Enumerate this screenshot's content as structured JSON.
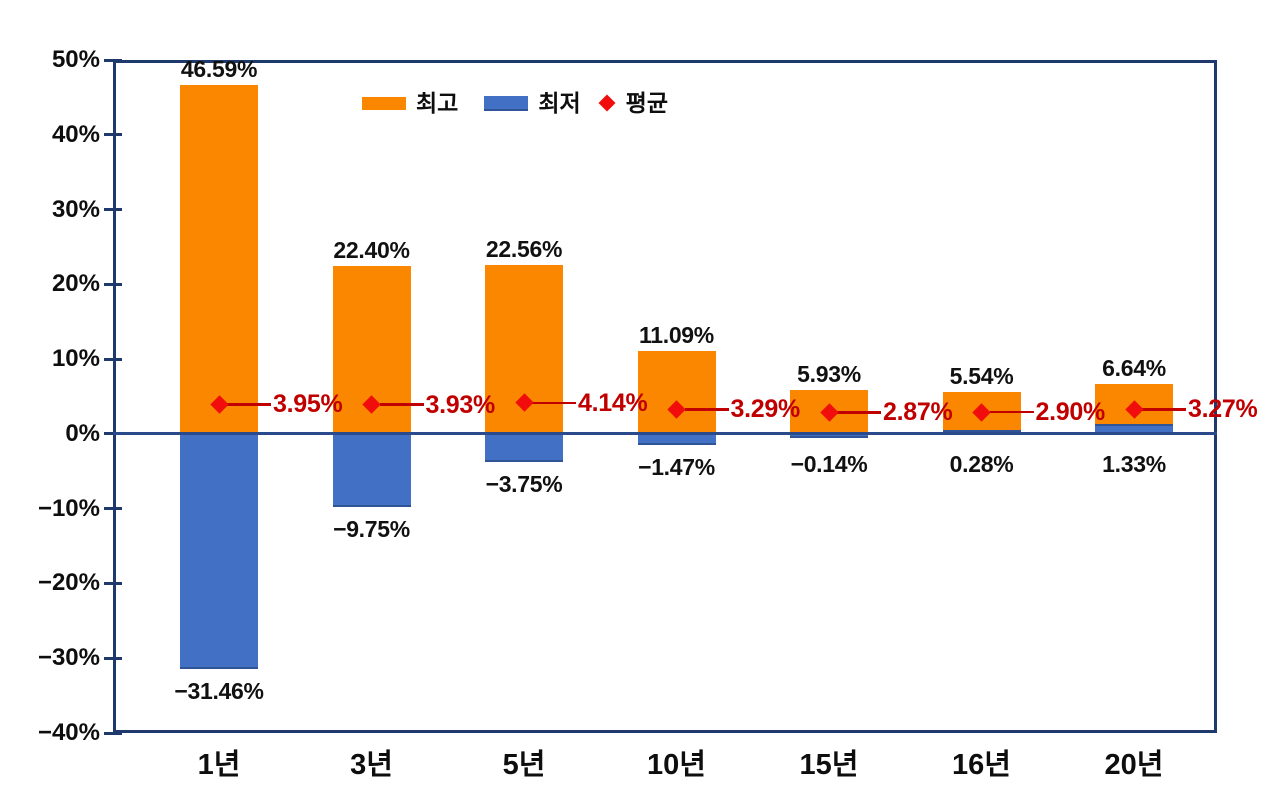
{
  "chart_data": {
    "type": "bar",
    "title": "",
    "xlabel": "",
    "ylabel": "",
    "categories": [
      "1년",
      "3년",
      "5년",
      "10년",
      "15년",
      "16년",
      "20년"
    ],
    "series": [
      {
        "name": "최고",
        "type": "bar",
        "color": "#FB8700",
        "values": [
          46.59,
          22.4,
          22.56,
          11.09,
          5.93,
          5.54,
          6.64
        ],
        "labels": [
          "46.59%",
          "22.40%",
          "22.56%",
          "11.09%",
          "5.93%",
          "5.54%",
          "6.64%"
        ]
      },
      {
        "name": "최저",
        "type": "bar",
        "color": "#4170C4",
        "edge_color": "#2F5597",
        "values": [
          -31.46,
          -9.75,
          -3.75,
          -1.47,
          -0.14,
          0.28,
          1.33
        ],
        "labels": [
          "−31.46%",
          "−9.75%",
          "−3.75%",
          "−1.47%",
          "−0.14%",
          "0.28%",
          "1.33%"
        ]
      },
      {
        "name": "평균",
        "type": "scatter-diamond",
        "color": "#F20D0D",
        "label_color": "#C00000",
        "values": [
          3.95,
          3.93,
          4.14,
          3.29,
          2.87,
          2.9,
          3.27
        ],
        "labels": [
          "3.95%",
          "3.93%",
          "4.14%",
          "3.29%",
          "2.87%",
          "2.90%",
          "3.27%"
        ]
      }
    ],
    "ylim": [
      -40,
      50
    ],
    "yticks": [
      {
        "value": 50,
        "label": "50%"
      },
      {
        "value": 40,
        "label": "40%"
      },
      {
        "value": 30,
        "label": "30%"
      },
      {
        "value": 20,
        "label": "20%"
      },
      {
        "value": 10,
        "label": "10%"
      },
      {
        "value": 0,
        "label": "0%"
      },
      {
        "value": -10,
        "label": "−10%"
      },
      {
        "value": -20,
        "label": "−20%"
      },
      {
        "value": -30,
        "label": "−30%"
      },
      {
        "value": -40,
        "label": "−40%"
      }
    ],
    "grid": false,
    "legend_position": "top-center",
    "axis_color": "#1E3A6D",
    "zero_line_color": "#2A4A8C"
  }
}
